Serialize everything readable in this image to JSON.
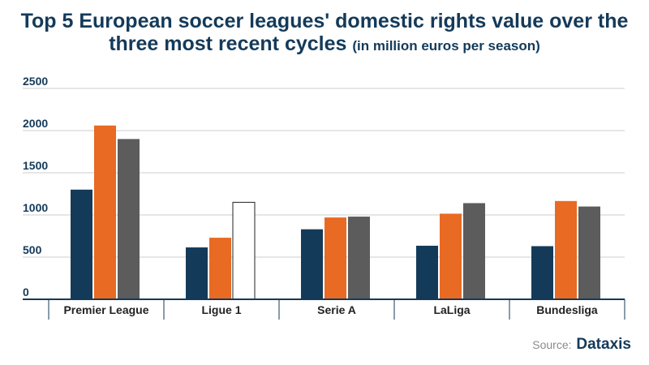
{
  "title": {
    "main": "Top 5 European soccer leagues' domestic rights value over the three most recent cycles",
    "unit": "(in million euros per season)"
  },
  "source": {
    "label": "Source:",
    "brand": "Dataxis"
  },
  "colors": {
    "series1": "#143a5a",
    "series2": "#e86a23",
    "series3": "#5c5c5c",
    "outlined": "#ffffff",
    "grid": "#cccccc",
    "axis": "#143a5a"
  },
  "chart_data": {
    "type": "bar",
    "categories": [
      "Premier League",
      "Ligue 1",
      "Serie A",
      "LaLiga",
      "Bundesliga"
    ],
    "series": [
      {
        "values": [
          1300,
          615,
          830,
          635,
          630
        ]
      },
      {
        "values": [
          2060,
          730,
          970,
          1015,
          1165
        ]
      },
      {
        "values": [
          1900,
          1150,
          980,
          1140,
          1100
        ]
      }
    ],
    "outlined_bars": [
      {
        "series": 2,
        "category": 1
      }
    ],
    "yticks": [
      0,
      500,
      1000,
      1500,
      2000,
      2500
    ],
    "ylim": [
      0,
      2500
    ],
    "grid": true,
    "legend": "none"
  }
}
